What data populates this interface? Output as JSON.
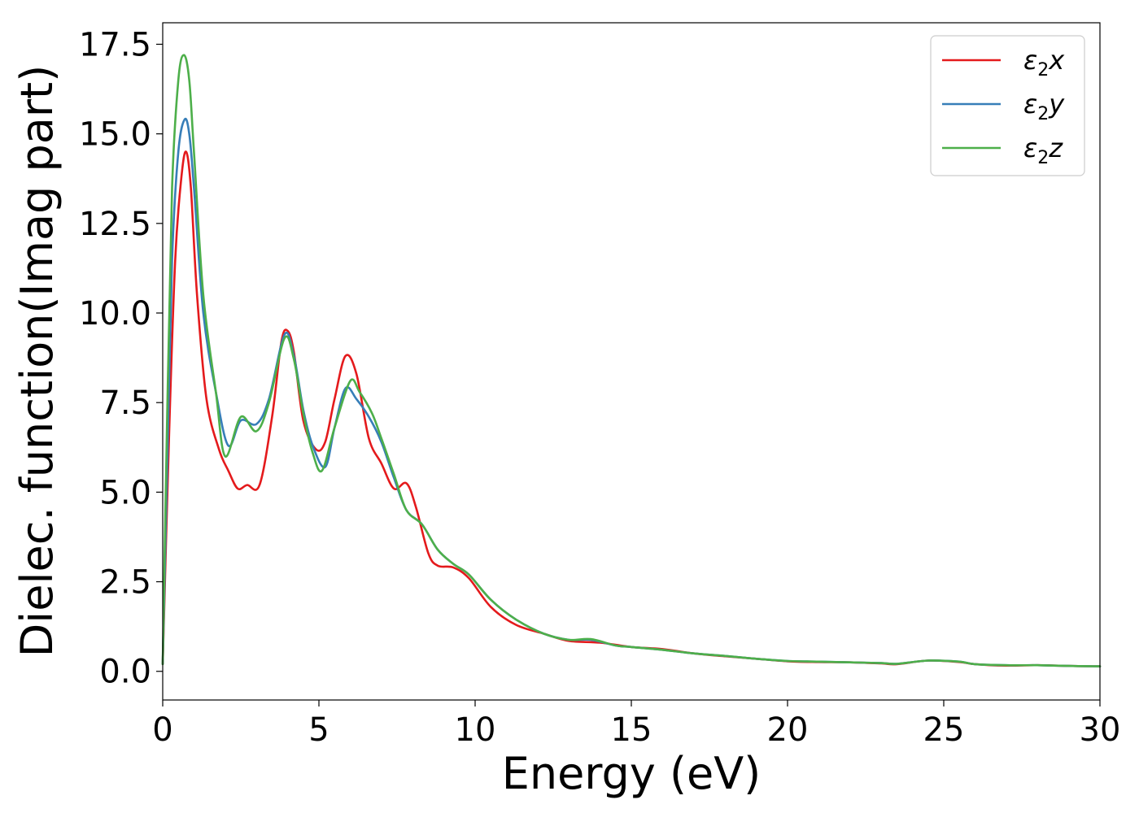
{
  "chart_data": {
    "type": "line",
    "xlabel": "Energy (eV)",
    "ylabel": "Dielec. function(Imag part)",
    "xlim": [
      0,
      30
    ],
    "ylim": [
      -0.8,
      18.1
    ],
    "xticks": [
      0,
      5,
      10,
      15,
      20,
      25,
      30
    ],
    "xtick_labels": [
      "0",
      "5",
      "10",
      "15",
      "20",
      "25",
      "30"
    ],
    "yticks": [
      0,
      2.5,
      5,
      7.5,
      10,
      12.5,
      15,
      17.5
    ],
    "ytick_labels": [
      "0.0",
      "2.5",
      "5.0",
      "7.5",
      "10.0",
      "12.5",
      "15.0",
      "17.5"
    ],
    "grid": false,
    "legend_position": "top-right",
    "series": [
      {
        "name": "ε2x",
        "base": "ε",
        "sub": "2",
        "suffix": "x",
        "color": "#e41a1c",
        "x": [
          0,
          0.2,
          0.4,
          0.6,
          0.75,
          0.9,
          1.1,
          1.4,
          1.8,
          2.1,
          2.4,
          2.7,
          3.1,
          3.5,
          3.8,
          4.0,
          4.2,
          4.5,
          4.9,
          5.2,
          5.5,
          5.85,
          6.2,
          6.6,
          7.0,
          7.4,
          7.8,
          8.1,
          8.5,
          8.8,
          9.3,
          9.8,
          10.5,
          11.3,
          12.2,
          13.0,
          14.0,
          15.0,
          16.0,
          17.0,
          18.0,
          19.0,
          20.0,
          21.0,
          22.0,
          23.0,
          23.5,
          24.5,
          25.5,
          26.0,
          27.0,
          28.0,
          29.0,
          30.0
        ],
        "y": [
          0.2,
          6.5,
          11.5,
          13.8,
          14.5,
          13.5,
          10.5,
          7.6,
          6.2,
          5.6,
          5.1,
          5.2,
          5.2,
          7.1,
          9.2,
          9.5,
          8.9,
          7.0,
          6.2,
          6.4,
          7.6,
          8.8,
          8.3,
          6.5,
          5.8,
          5.1,
          5.25,
          4.6,
          3.3,
          2.95,
          2.9,
          2.6,
          1.8,
          1.3,
          1.05,
          0.85,
          0.8,
          0.68,
          0.62,
          0.5,
          0.42,
          0.35,
          0.28,
          0.26,
          0.25,
          0.22,
          0.2,
          0.3,
          0.26,
          0.2,
          0.16,
          0.17,
          0.15,
          0.14
        ]
      },
      {
        "name": "ε2y",
        "base": "ε",
        "sub": "2",
        "suffix": "y",
        "color": "#377eb8",
        "x": [
          0,
          0.15,
          0.3,
          0.5,
          0.7,
          0.85,
          1.0,
          1.3,
          1.7,
          2.1,
          2.5,
          3.0,
          3.4,
          3.9,
          4.2,
          4.5,
          4.8,
          5.2,
          5.5,
          5.85,
          6.2,
          6.6,
          7.0,
          7.4,
          7.8,
          8.3,
          8.8,
          9.3,
          9.8,
          10.5,
          11.3,
          12.2,
          13.0,
          13.7,
          14.5,
          15.0,
          16.0,
          17.0,
          18.0,
          19.0,
          20.0,
          21.0,
          22.0,
          23.0,
          23.5,
          24.5,
          25.5,
          26.0,
          27.0,
          28.0,
          29.0,
          30.0
        ],
        "y": [
          0.2,
          6.0,
          11.5,
          14.5,
          15.4,
          15.0,
          13.5,
          10.0,
          7.8,
          6.3,
          7.0,
          6.9,
          7.6,
          9.4,
          8.8,
          7.3,
          6.3,
          5.7,
          6.8,
          7.9,
          7.6,
          7.1,
          6.4,
          5.4,
          4.5,
          4.1,
          3.4,
          3.0,
          2.7,
          2.0,
          1.45,
          1.05,
          0.88,
          0.88,
          0.72,
          0.68,
          0.6,
          0.5,
          0.43,
          0.35,
          0.29,
          0.27,
          0.25,
          0.23,
          0.21,
          0.3,
          0.27,
          0.2,
          0.17,
          0.17,
          0.15,
          0.14
        ]
      },
      {
        "name": "ε2z",
        "base": "ε",
        "sub": "2",
        "suffix": "z",
        "color": "#4daf4a",
        "x": [
          0,
          0.15,
          0.3,
          0.5,
          0.68,
          0.85,
          1.0,
          1.3,
          1.7,
          2.0,
          2.5,
          3.0,
          3.4,
          3.9,
          4.2,
          4.5,
          4.8,
          5.1,
          5.5,
          6.0,
          6.3,
          6.7,
          7.0,
          7.4,
          7.8,
          8.3,
          8.8,
          9.3,
          9.8,
          10.5,
          11.3,
          12.2,
          13.0,
          13.7,
          14.5,
          15.0,
          16.0,
          17.0,
          18.0,
          19.0,
          20.0,
          21.0,
          22.0,
          23.0,
          23.5,
          24.5,
          25.5,
          26.0,
          27.0,
          28.0,
          29.0,
          30.0
        ],
        "y": [
          0.2,
          7.5,
          13.5,
          16.5,
          17.2,
          16.5,
          14.5,
          10.5,
          7.8,
          6.0,
          7.1,
          6.7,
          7.5,
          9.3,
          8.7,
          7.2,
          6.1,
          5.6,
          6.8,
          8.1,
          7.8,
          7.2,
          6.5,
          5.5,
          4.5,
          4.1,
          3.4,
          3.0,
          2.7,
          2.0,
          1.45,
          1.05,
          0.88,
          0.9,
          0.72,
          0.68,
          0.6,
          0.5,
          0.43,
          0.35,
          0.29,
          0.27,
          0.25,
          0.23,
          0.21,
          0.3,
          0.27,
          0.2,
          0.17,
          0.17,
          0.15,
          0.14
        ]
      }
    ]
  }
}
